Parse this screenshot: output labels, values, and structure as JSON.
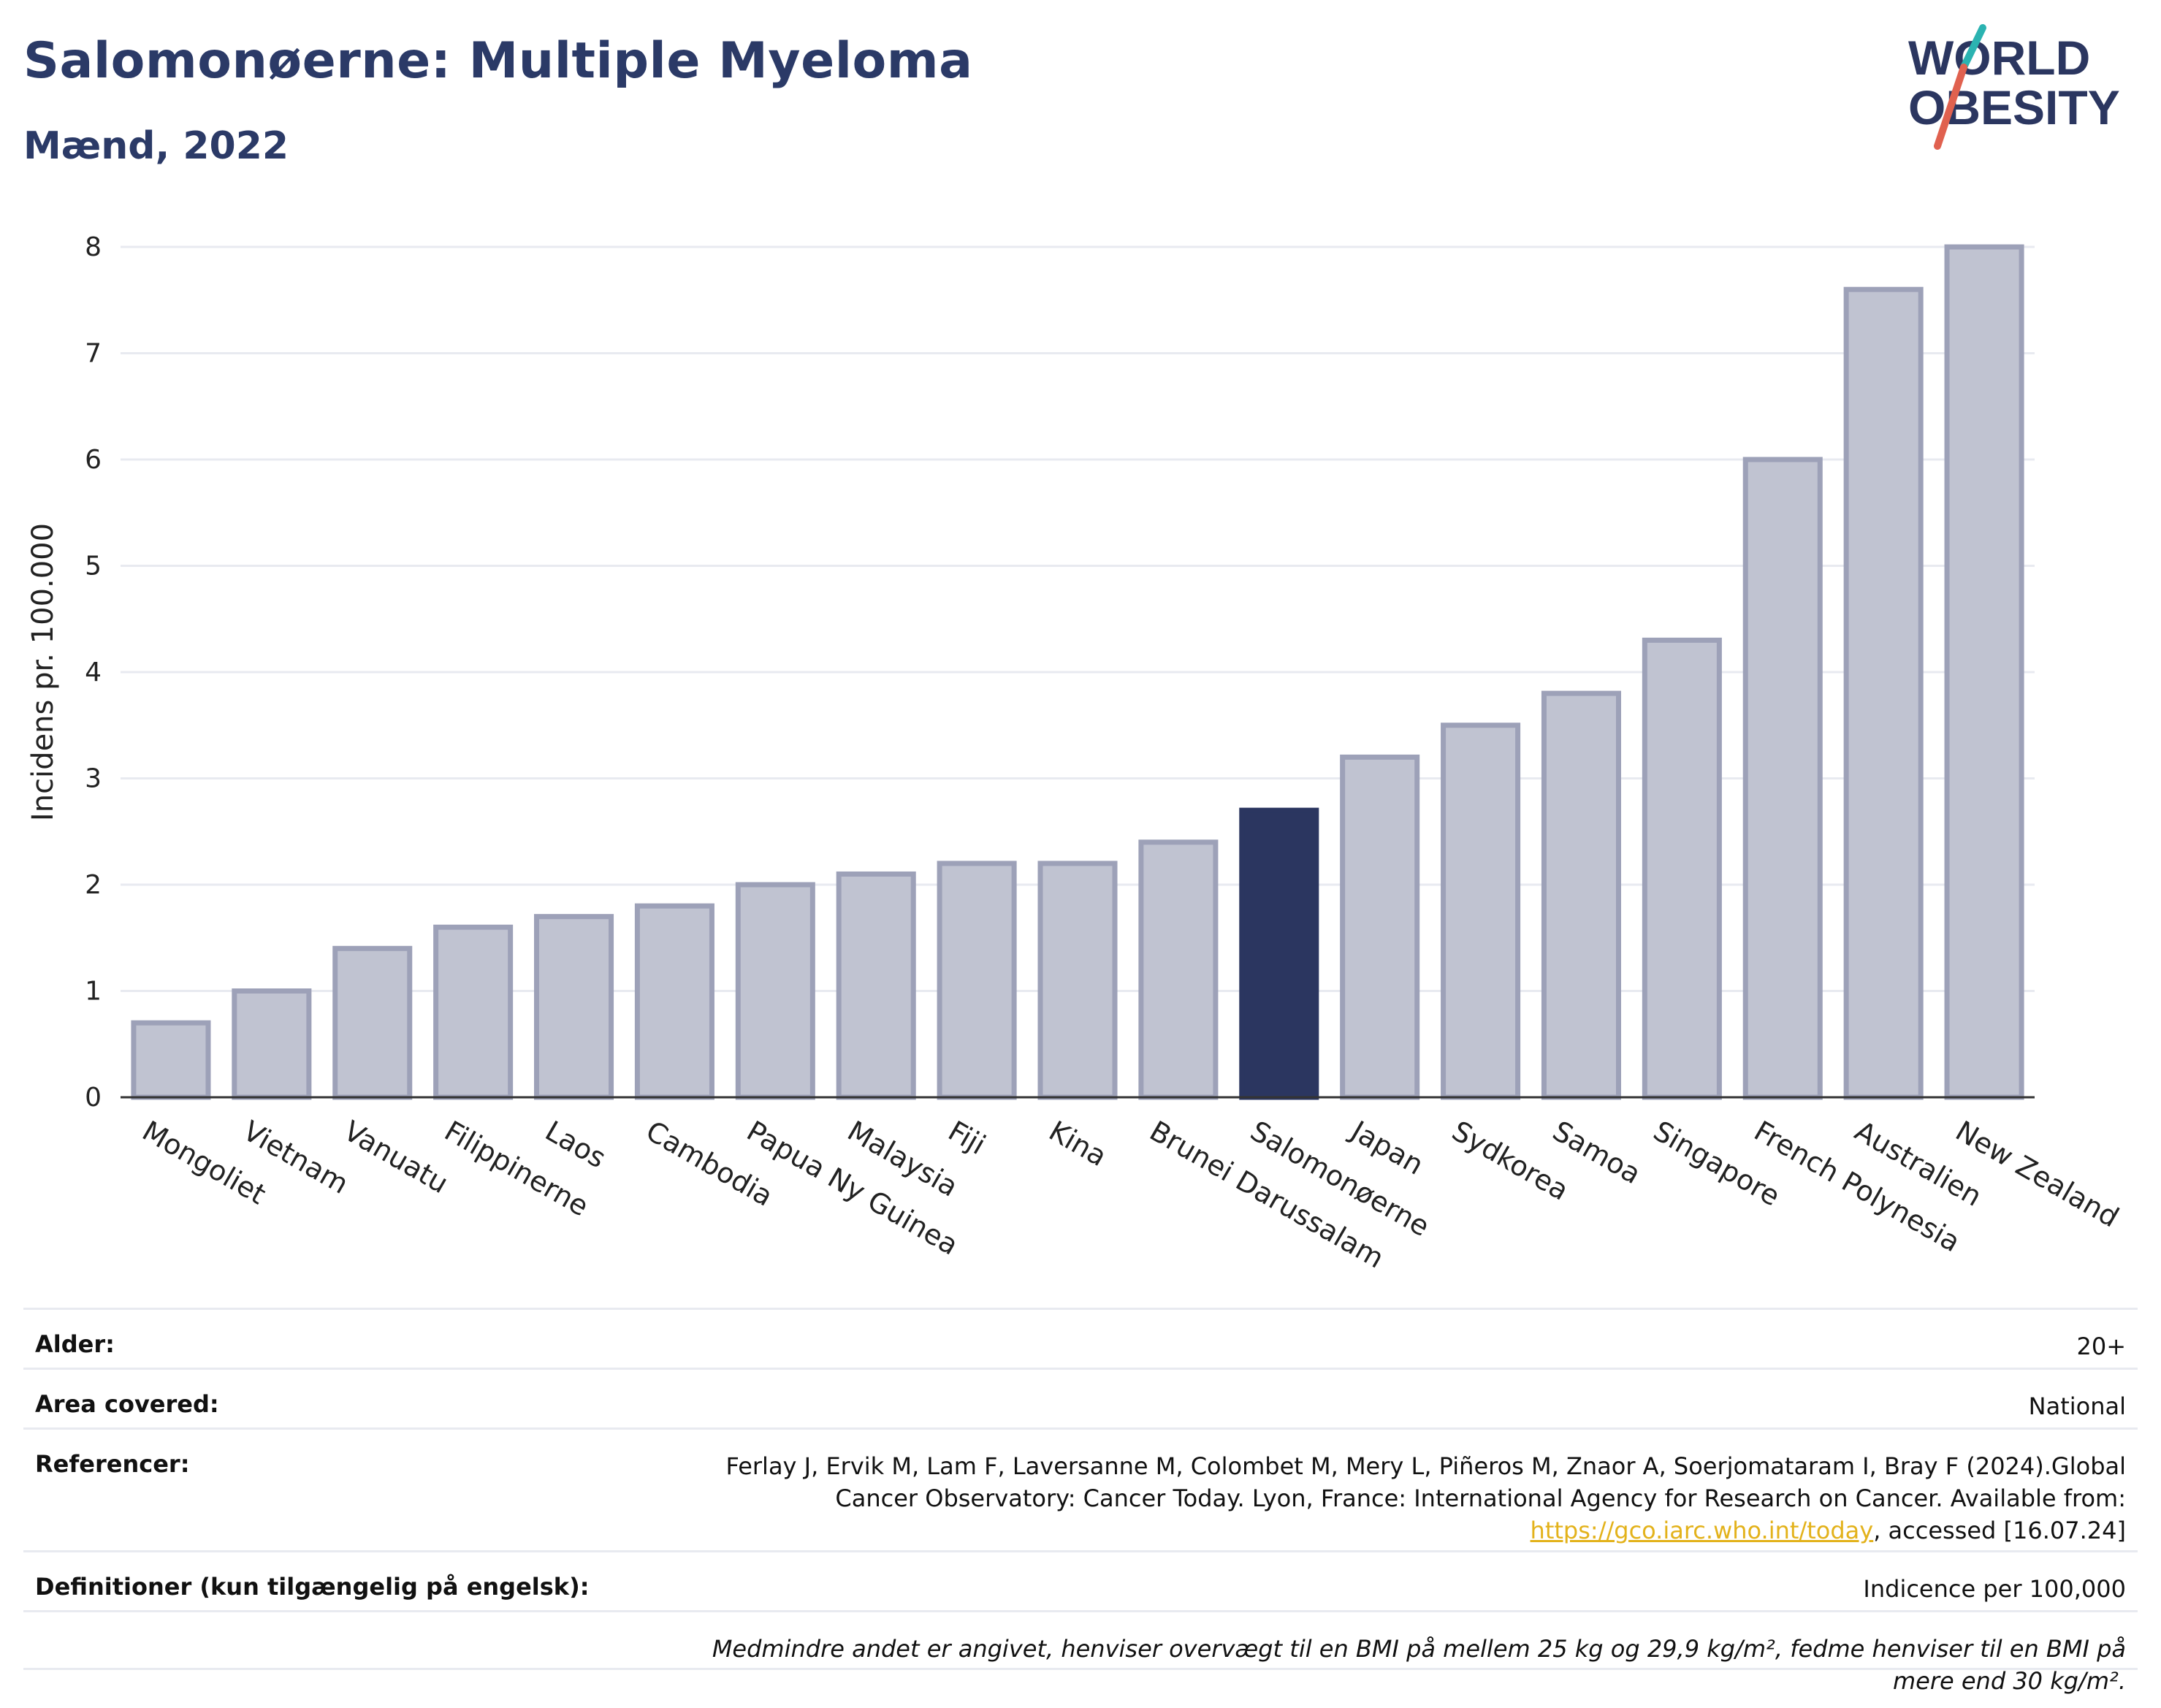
{
  "header": {
    "title": "Salomonøerne: Multiple Myeloma",
    "subtitle": "Mænd, 2022",
    "logo_text_line1": "WORLD",
    "logo_text_line2": "OBESITY"
  },
  "chart_data": {
    "type": "bar",
    "title": "Salomonøerne: Multiple Myeloma",
    "subtitle": "Mænd, 2022",
    "ylabel": "Incidens pr. 100.000",
    "xlabel": "",
    "ylim": [
      0,
      8
    ],
    "yticks": [
      0,
      1,
      2,
      3,
      4,
      5,
      6,
      7,
      8
    ],
    "grid": true,
    "categories": [
      "Mongoliet",
      "Vietnam",
      "Vanuatu",
      "Filippinerne",
      "Laos",
      "Cambodia",
      "Papua Ny Guinea",
      "Malaysia",
      "Fiji",
      "Kina",
      "Brunei Darussalam",
      "Salomonøerne",
      "Japan",
      "Sydkorea",
      "Samoa",
      "Singapore",
      "French Polynesia",
      "Australien",
      "New Zealand"
    ],
    "values": [
      0.7,
      1.0,
      1.4,
      1.6,
      1.7,
      1.8,
      2.0,
      2.1,
      2.2,
      2.2,
      2.4,
      2.7,
      3.2,
      3.5,
      3.8,
      4.3,
      6.0,
      7.6,
      8.0
    ],
    "highlight": "Salomonøerne",
    "colors": {
      "bar": "#c0c3d1",
      "bar_edge": "#9da1b8",
      "highlight": "#2b3660",
      "grid": "#e8eaf0",
      "axis": "#333333"
    }
  },
  "info": {
    "age_label": "Alder:",
    "age_value": "20+",
    "area_label": "Area covered:",
    "area_value": "National",
    "ref_label": "Referencer:",
    "ref_text": "Ferlay J, Ervik M, Lam F, Laversanne M, Colombet M, Mery L, Piñeros M, Znaor A, Soerjomataram I, Bray F (2024).Global Cancer Observatory: Cancer Today. Lyon, France: International Agency for Research on Cancer. Available from:",
    "ref_link": "https://gco.iarc.who.int/today",
    "ref_suffix": ", accessed [16.07.24]",
    "def_label": "Definitioner (kun tilgængelig på engelsk):",
    "def_value": "Indicence per 100,000",
    "note": "Medmindre andet er angivet, henviser overvægt til en BMI på mellem 25 kg og 29,9 kg/m², fedme henviser til en BMI på mere end 30 kg/m²."
  }
}
